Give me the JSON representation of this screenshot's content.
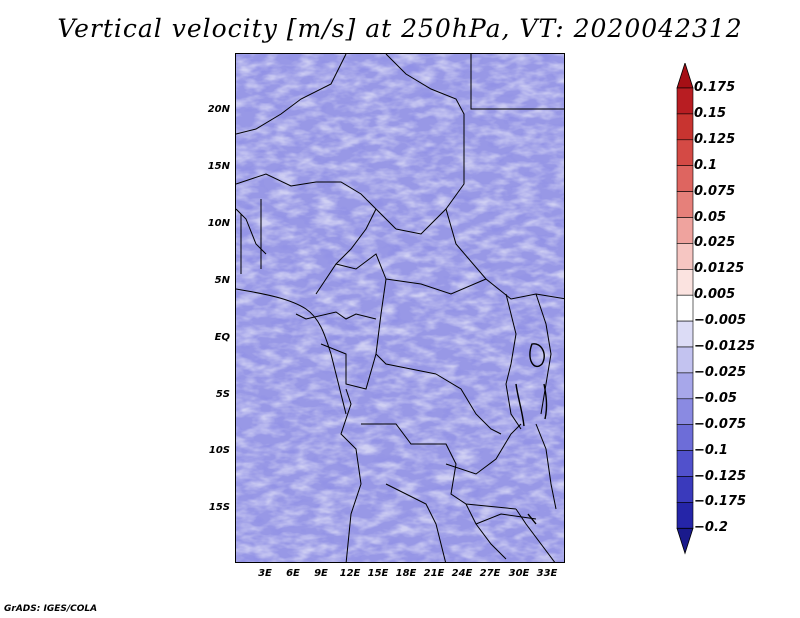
{
  "title": "Vertical velocity [m/s] at 250hPa, VT: 2020042312",
  "footer": "GrADS: IGES/COLA",
  "lat_ticks": [
    "20N",
    "15N",
    "10N",
    "5N",
    "EQ",
    "5S",
    "10S",
    "15S"
  ],
  "lon_ticks": [
    "3E",
    "6E",
    "9E",
    "12E",
    "15E",
    "18E",
    "21E",
    "24E",
    "27E",
    "30E",
    "33E"
  ],
  "colorbar": {
    "labels": [
      "0.175",
      "0.15",
      "0.125",
      "0.1",
      "0.075",
      "0.05",
      "0.025",
      "0.0125",
      "0.005",
      "−0.005",
      "−0.0125",
      "−0.025",
      "−0.05",
      "−0.075",
      "−0.1",
      "−0.125",
      "−0.175",
      "−0.2"
    ],
    "colors": [
      "#a50f15",
      "#b81d22",
      "#c83430",
      "#d44a45",
      "#de6560",
      "#e6807a",
      "#efa39e",
      "#f6c6c2",
      "#fbe3e0",
      "#ffffff",
      "#dcdcf6",
      "#c3c3f0",
      "#a7a7ea",
      "#8a8ae2",
      "#6d6dd8",
      "#5151cc",
      "#3a3abc",
      "#2525a8",
      "#1a1a8c"
    ]
  }
}
